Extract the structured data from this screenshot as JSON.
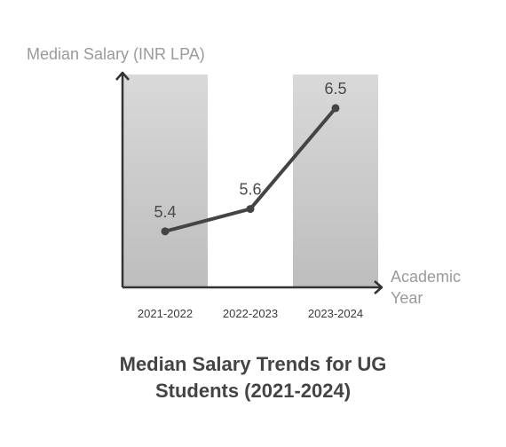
{
  "chart_data": {
    "type": "line",
    "title_lines": [
      "Median Salary Trends for UG",
      "Students (2021-2024)"
    ],
    "ylabel": "Median Salary (INR LPA)",
    "xlabel_lines": [
      "Academic",
      "Year"
    ],
    "categories": [
      "2021-2022",
      "2022-2023",
      "2023-2024"
    ],
    "values": [
      5.4,
      5.6,
      6.5
    ],
    "data_labels": [
      "5.4",
      "5.6",
      "6.5"
    ],
    "ylim": [
      4.9,
      6.8
    ],
    "grid": false,
    "colors": {
      "line": "#444444",
      "axis": "#333333",
      "band_top": "#d9d9d9",
      "band_bottom": "#bdbdbd"
    }
  }
}
